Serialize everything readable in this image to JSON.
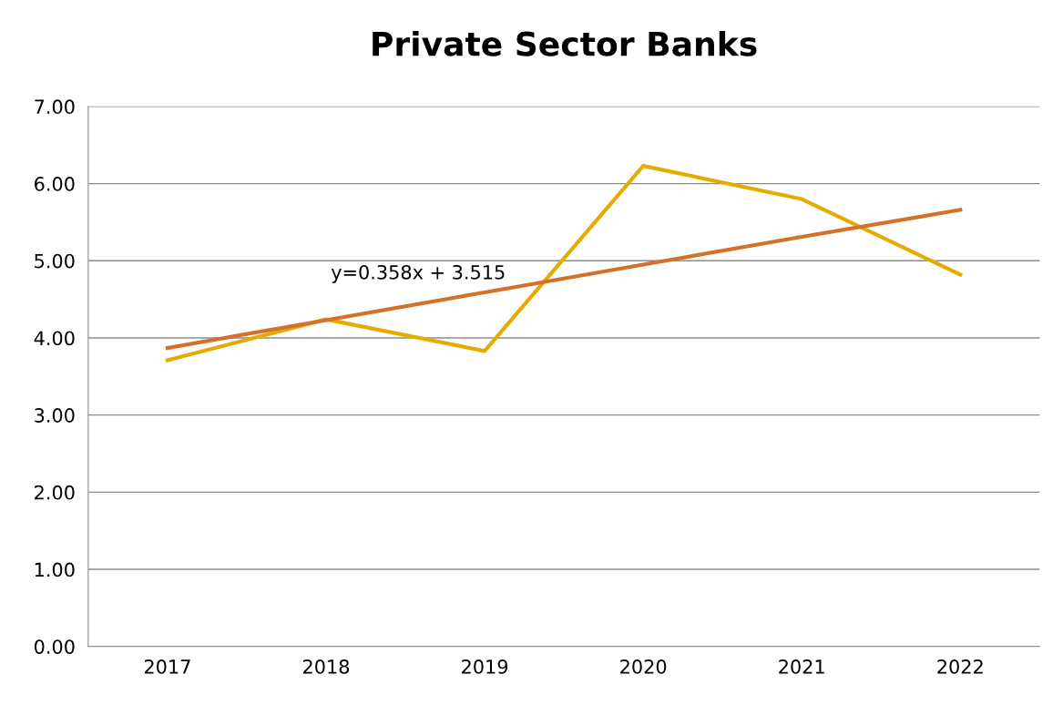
{
  "chart_data": {
    "type": "line",
    "title": "Private Sector Banks",
    "categories": [
      "2017",
      "2018",
      "2019",
      "2020",
      "2021",
      "2022"
    ],
    "series": [
      {
        "color": "#e4ac00",
        "values": [
          3.71,
          4.24,
          3.83,
          6.23,
          5.8,
          4.82
        ]
      },
      {
        "type": "line",
        "color": "#d4702a",
        "values": [
          3.87,
          4.23,
          4.59,
          4.95,
          5.31,
          5.66
        ]
      }
    ],
    "annotations": [
      "y=0.358x + 3.515"
    ],
    "ylim": [
      0,
      7
    ],
    "yticks": [
      {
        "value": 0,
        "label": "0.00"
      },
      {
        "value": 1,
        "label": "1.00"
      },
      {
        "value": 2,
        "label": "2.00"
      },
      {
        "value": 3,
        "label": "3.00"
      },
      {
        "value": 4,
        "label": "4.00"
      },
      {
        "value": 5,
        "label": "5.00"
      },
      {
        "value": 6,
        "label": "6.00"
      },
      {
        "value": 7,
        "label": "7.00"
      }
    ],
    "grid": "y",
    "marker": "none",
    "line_style": "solid"
  }
}
